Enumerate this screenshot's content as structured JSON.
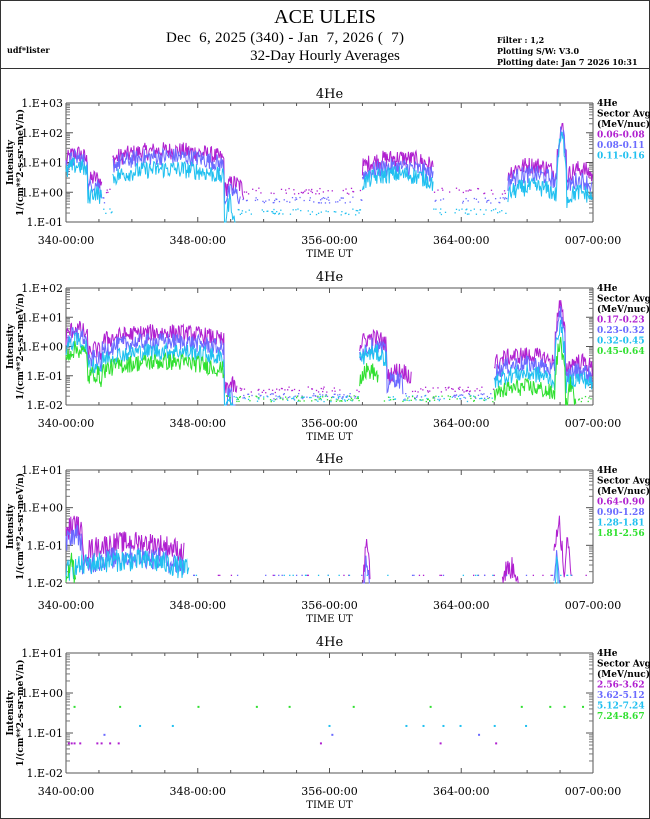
{
  "header": {
    "title": "ACE ULEIS",
    "date_range": "Dec  6, 2025 (340) - Jan  7, 2026 (  7)",
    "subtitle": "32-Day Hourly Averages",
    "user": "udf*lister",
    "filter": "Filter : 1,2",
    "software": "Plotting S/W: V3.0",
    "plot_date": "Plotting date: Jan  7 2026 10:31"
  },
  "colors": {
    "purple": "#b020d0",
    "blue": "#6a6aff",
    "cyan": "#20c0f0",
    "green": "#30e030"
  },
  "chart_data": [
    {
      "type": "line",
      "title": "4He",
      "xlabel": "TIME UT",
      "ylabel": "Intensity",
      "ylabel2": "1/(cm**2-s-sr-meV/n)",
      "yscale": "log",
      "ylim": [
        0.1,
        1000
      ],
      "yticks": [
        "1.E-01",
        "1.E+00",
        "1.E+01",
        "1.E+02",
        "1.E+03"
      ],
      "xlim_days": [
        0,
        32
      ],
      "xticks": [
        "340-00:00",
        "348-00:00",
        "356-00:00",
        "364-00:00",
        "007-00:00"
      ],
      "legend_title": [
        "4He",
        "Sector Avg",
        "(MeV/nuc)"
      ],
      "legend_position": "right",
      "series": [
        {
          "name": "0.06-0.08",
          "color": "purple",
          "base": 1.0,
          "events": [
            [
              0.0,
              1.3,
              20
            ],
            [
              1.3,
              2.2,
              3
            ],
            [
              2.8,
              9.6,
              25
            ],
            [
              9.6,
              10.8,
              2
            ],
            [
              18.0,
              22.3,
              14
            ],
            [
              26.8,
              29.8,
              8
            ],
            [
              29.8,
              30.4,
              150
            ],
            [
              30.4,
              32.0,
              6
            ]
          ]
        },
        {
          "name": "0.08-0.11",
          "color": "blue",
          "base": 0.5,
          "events": [
            [
              0.0,
              1.3,
              14
            ],
            [
              1.3,
              2.2,
              2
            ],
            [
              2.8,
              9.6,
              16
            ],
            [
              9.6,
              10.6,
              1
            ],
            [
              18.0,
              22.3,
              7
            ],
            [
              26.8,
              29.8,
              4
            ],
            [
              29.8,
              30.4,
              130
            ],
            [
              30.4,
              32.0,
              2.5
            ]
          ]
        },
        {
          "name": "0.11-0.16",
          "color": "cyan",
          "base": 0.2,
          "events": [
            [
              0.0,
              1.3,
              8
            ],
            [
              1.3,
              2.2,
              1
            ],
            [
              2.8,
              9.6,
              6
            ],
            [
              9.6,
              10.3,
              0.5
            ],
            [
              18.0,
              22.3,
              4
            ],
            [
              26.8,
              29.8,
              1.5
            ],
            [
              29.8,
              30.4,
              70
            ],
            [
              30.4,
              32.0,
              1.0
            ]
          ]
        }
      ]
    },
    {
      "type": "line",
      "title": "4He",
      "xlabel": "TIME UT",
      "ylabel": "Intensity",
      "ylabel2": "1/(cm**2-s-sr-meV/n)",
      "yscale": "log",
      "ylim": [
        0.01,
        100
      ],
      "yticks": [
        "1.E-02",
        "1.E-01",
        "1.E+00",
        "1.E+01",
        "1.E+02"
      ],
      "xlim_days": [
        0,
        32
      ],
      "xticks": [
        "340-00:00",
        "348-00:00",
        "356-00:00",
        "364-00:00",
        "007-00:00"
      ],
      "legend_title": [
        "4He",
        "Sector Avg",
        "(MeV/nuc)"
      ],
      "legend_position": "right",
      "series": [
        {
          "name": "0.17-0.23",
          "color": "purple",
          "base": 0.03,
          "events": [
            [
              0.0,
              1.3,
              4
            ],
            [
              1.3,
              2.2,
              0.8
            ],
            [
              2.2,
              9.6,
              3
            ],
            [
              9.6,
              10.4,
              0.05
            ],
            [
              17.8,
              19.5,
              2
            ],
            [
              19.5,
              21.0,
              0.15
            ],
            [
              26.0,
              29.7,
              0.5
            ],
            [
              29.7,
              30.3,
              25
            ],
            [
              30.3,
              32.0,
              0.3
            ]
          ]
        },
        {
          "name": "0.23-0.32",
          "color": "blue",
          "base": 0.018,
          "events": [
            [
              0.0,
              1.3,
              2.5
            ],
            [
              1.3,
              2.2,
              0.4
            ],
            [
              2.2,
              9.6,
              1.5
            ],
            [
              9.6,
              10.3,
              0.03
            ],
            [
              17.8,
              19.5,
              1.0
            ],
            [
              19.5,
              20.5,
              0.08
            ],
            [
              26.0,
              29.7,
              0.25
            ],
            [
              29.7,
              30.3,
              15
            ],
            [
              30.3,
              32.0,
              0.15
            ]
          ]
        },
        {
          "name": "0.32-0.45",
          "color": "cyan",
          "base": 0.015,
          "events": [
            [
              0.0,
              1.3,
              1.5
            ],
            [
              1.3,
              2.2,
              0.25
            ],
            [
              2.2,
              9.6,
              0.7
            ],
            [
              9.6,
              10.2,
              0.02
            ],
            [
              17.8,
              19.5,
              0.6
            ],
            [
              26.0,
              29.7,
              0.12
            ],
            [
              29.7,
              30.3,
              5
            ],
            [
              30.3,
              32.0,
              0.08
            ]
          ]
        },
        {
          "name": "0.45-0.64",
          "color": "green",
          "base": 0.015,
          "events": [
            [
              0.0,
              1.3,
              0.8
            ],
            [
              1.3,
              2.2,
              0.12
            ],
            [
              2.2,
              9.6,
              0.3
            ],
            [
              17.8,
              19.0,
              0.15
            ],
            [
              26.0,
              29.7,
              0.04
            ],
            [
              29.7,
              30.3,
              1.2
            ],
            [
              30.3,
              31.0,
              0.05
            ]
          ]
        }
      ]
    },
    {
      "type": "line",
      "title": "4He",
      "xlabel": "TIME UT",
      "ylabel": "Intensity",
      "ylabel2": "1/(cm**2-s-sr-meV/n)",
      "yscale": "log",
      "ylim": [
        0.01,
        10
      ],
      "yticks": [
        "1.E-02",
        "1.E-01",
        "1.E+00",
        "1.E+01"
      ],
      "xlim_days": [
        0,
        32
      ],
      "xticks": [
        "340-00:00",
        "348-00:00",
        "356-00:00",
        "364-00:00",
        "007-00:00"
      ],
      "legend_title": [
        "4He",
        "Sector Avg",
        "(MeV/nuc)"
      ],
      "legend_position": "right",
      "series": [
        {
          "name": "0.64-0.90",
          "color": "purple",
          "base": null,
          "events": [
            [
              0.0,
              1.0,
              0.35
            ],
            [
              1.0,
              7.2,
              0.12
            ],
            [
              18.0,
              18.5,
              0.08
            ],
            [
              26.5,
              27.5,
              0.025
            ],
            [
              29.6,
              30.2,
              0.4
            ],
            [
              30.2,
              30.7,
              0.1
            ]
          ]
        },
        {
          "name": "0.90-1.28",
          "color": "blue",
          "base": null,
          "events": [
            [
              0.0,
              1.0,
              0.2
            ],
            [
              1.0,
              7.2,
              0.05
            ],
            [
              18.0,
              18.5,
              0.03
            ],
            [
              29.6,
              30.0,
              0.06
            ]
          ]
        },
        {
          "name": "1.28-1.81",
          "color": "cyan",
          "base": null,
          "events": [
            [
              0.0,
              7.5,
              0.04
            ],
            [
              29.6,
              30.0,
              0.03
            ]
          ]
        },
        {
          "name": "1.81-2.56",
          "color": "green",
          "base": null,
          "events": [
            [
              0.0,
              0.6,
              0.05
            ]
          ]
        }
      ]
    },
    {
      "type": "scatter",
      "title": "4He",
      "xlabel": "TIME UT",
      "ylabel": "Intensity",
      "ylabel2": "1/(cm**2-s-sr-meV/n)",
      "yscale": "log",
      "ylim": [
        0.01,
        10
      ],
      "yticks": [
        "1.E-02",
        "1.E-01",
        "1.E+00",
        "1.E+01"
      ],
      "xlim_days": [
        0,
        32
      ],
      "xticks": [
        "340-00:00",
        "348-00:00",
        "356-00:00",
        "364-00:00",
        "007-00:00"
      ],
      "legend_title": [
        "4He",
        "Sector Avg",
        "(MeV/nuc)"
      ],
      "legend_position": "right",
      "series": [
        {
          "name": "2.56-3.62",
          "color": "purple",
          "points": [
            [
              0.2,
              0.055
            ],
            [
              0.4,
              0.055
            ],
            [
              0.6,
              0.055
            ],
            [
              1.0,
              0.055
            ],
            [
              2.2,
              0.055
            ],
            [
              2.5,
              0.055
            ],
            [
              3.1,
              0.055
            ],
            [
              3.7,
              0.055
            ],
            [
              17.9,
              0.055
            ],
            [
              26.3,
              0.055
            ],
            [
              30.2,
              0.055
            ]
          ]
        },
        {
          "name": "3.62-5.12",
          "color": "blue",
          "points": [
            [
              2.7,
              0.09
            ],
            [
              18.7,
              0.09
            ],
            [
              29.0,
              0.09
            ]
          ]
        },
        {
          "name": "5.12-7.24",
          "color": "cyan",
          "points": [
            [
              5.2,
              0.15
            ],
            [
              7.5,
              0.15
            ],
            [
              18.5,
              0.15
            ],
            [
              23.9,
              0.15
            ],
            [
              25.1,
              0.15
            ],
            [
              26.5,
              0.15
            ],
            [
              27.7,
              0.15
            ],
            [
              30.1,
              0.15
            ],
            [
              32.3,
              0.15
            ]
          ]
        },
        {
          "name": "7.24-8.67",
          "color": "green",
          "points": [
            [
              0.6,
              0.45
            ],
            [
              3.8,
              0.45
            ],
            [
              9.3,
              0.45
            ],
            [
              13.4,
              0.45
            ],
            [
              15.7,
              0.45
            ],
            [
              20.2,
              0.45
            ],
            [
              25.6,
              0.45
            ],
            [
              32.0,
              0.45
            ],
            [
              34.0,
              0.45
            ],
            [
              35.0,
              0.45
            ],
            [
              36.3,
              0.45
            ]
          ]
        }
      ]
    }
  ]
}
